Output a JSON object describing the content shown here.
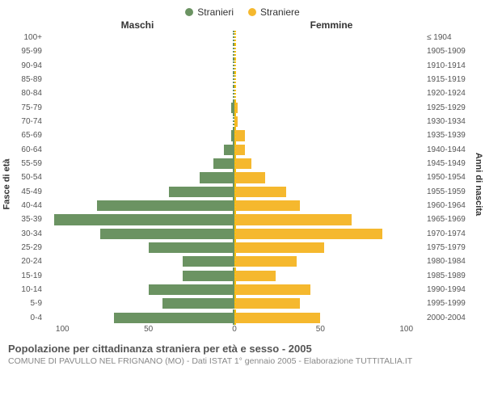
{
  "legend": {
    "male": {
      "label": "Stranieri",
      "color": "#6b9362"
    },
    "female": {
      "label": "Straniere",
      "color": "#f5b82e"
    }
  },
  "headers": {
    "left": "Maschi",
    "right": "Femmine"
  },
  "axis_labels": {
    "left": "Fasce di età",
    "right": "Anni di nascita"
  },
  "chart": {
    "type": "population-pyramid",
    "xmax": 110,
    "xticks_left": [
      100,
      50,
      0
    ],
    "xticks_right": [
      0,
      50,
      100
    ],
    "background_color": "#ffffff",
    "grid_color": "#e0e0e0",
    "bar_height_pct": 76,
    "rows": [
      {
        "age": "100+",
        "birth": "≤ 1904",
        "m": 0,
        "f": 0
      },
      {
        "age": "95-99",
        "birth": "1905-1909",
        "m": 0,
        "f": 0
      },
      {
        "age": "90-94",
        "birth": "1910-1914",
        "m": 0,
        "f": 0
      },
      {
        "age": "85-89",
        "birth": "1915-1919",
        "m": 0,
        "f": 0
      },
      {
        "age": "80-84",
        "birth": "1920-1924",
        "m": 0,
        "f": 0
      },
      {
        "age": "75-79",
        "birth": "1925-1929",
        "m": 2,
        "f": 2
      },
      {
        "age": "70-74",
        "birth": "1930-1934",
        "m": 0,
        "f": 2
      },
      {
        "age": "65-69",
        "birth": "1935-1939",
        "m": 2,
        "f": 6
      },
      {
        "age": "60-64",
        "birth": "1940-1944",
        "m": 6,
        "f": 6
      },
      {
        "age": "55-59",
        "birth": "1945-1949",
        "m": 12,
        "f": 10
      },
      {
        "age": "50-54",
        "birth": "1950-1954",
        "m": 20,
        "f": 18
      },
      {
        "age": "45-49",
        "birth": "1955-1959",
        "m": 38,
        "f": 30
      },
      {
        "age": "40-44",
        "birth": "1960-1964",
        "m": 80,
        "f": 38
      },
      {
        "age": "35-39",
        "birth": "1965-1969",
        "m": 105,
        "f": 68
      },
      {
        "age": "30-34",
        "birth": "1970-1974",
        "m": 78,
        "f": 86
      },
      {
        "age": "25-29",
        "birth": "1975-1979",
        "m": 50,
        "f": 52
      },
      {
        "age": "20-24",
        "birth": "1980-1984",
        "m": 30,
        "f": 36
      },
      {
        "age": "15-19",
        "birth": "1985-1989",
        "m": 30,
        "f": 24
      },
      {
        "age": "10-14",
        "birth": "1990-1994",
        "m": 50,
        "f": 44
      },
      {
        "age": "5-9",
        "birth": "1995-1999",
        "m": 42,
        "f": 38
      },
      {
        "age": "0-4",
        "birth": "2000-2004",
        "m": 70,
        "f": 50
      }
    ]
  },
  "caption": {
    "title": "Popolazione per cittadinanza straniera per età e sesso - 2005",
    "sub": "COMUNE DI PAVULLO NEL FRIGNANO (MO) - Dati ISTAT 1° gennaio 2005 - Elaborazione TUTTITALIA.IT"
  }
}
